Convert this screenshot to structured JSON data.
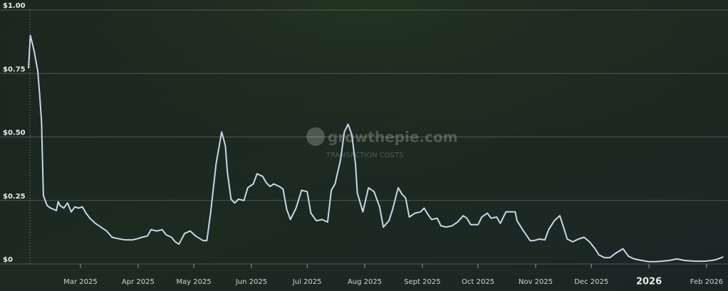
{
  "chart_data": {
    "type": "line",
    "watermark": {
      "brand": "growthepie.com",
      "subtitle": "TRANSACTION COSTS"
    },
    "xlim": [
      0,
      375
    ],
    "xticks": [
      {
        "value": 28,
        "label": "Mar 2025"
      },
      {
        "value": 59,
        "label": "Apr 2025"
      },
      {
        "value": 89,
        "label": "May 2025"
      },
      {
        "value": 120,
        "label": "Jun 2025"
      },
      {
        "value": 150,
        "label": "Jul 2025"
      },
      {
        "value": 181,
        "label": "Aug 2025"
      },
      {
        "value": 212,
        "label": "Sept 2025"
      },
      {
        "value": 242,
        "label": "Oct 2025"
      },
      {
        "value": 273,
        "label": "Nov 2025"
      },
      {
        "value": 303,
        "label": "Dec 2025"
      },
      {
        "value": 334,
        "label": "2026",
        "bold": true
      },
      {
        "value": 365,
        "label": "Feb 2026"
      }
    ],
    "ylim": [
      0,
      1
    ],
    "yticks": [
      {
        "value": 0,
        "label": "$0"
      },
      {
        "value": 0.25,
        "label": "$0.25"
      },
      {
        "value": 0.5,
        "label": "$0.50"
      },
      {
        "value": 0.75,
        "label": "$0.75"
      },
      {
        "value": 1,
        "label": "$1.00"
      }
    ],
    "grid": true,
    "series": [
      {
        "color": "#c9d6e8",
        "x": [
          0,
          1,
          3,
          5,
          6,
          7,
          8,
          10,
          12,
          15,
          16,
          17,
          19,
          21,
          23,
          25,
          27,
          29,
          31,
          33,
          36,
          38,
          42,
          45,
          48,
          52,
          56,
          59,
          61,
          64,
          66,
          69,
          72,
          74,
          77,
          79,
          81,
          84,
          87,
          90,
          94,
          96,
          98,
          101,
          104,
          106,
          107,
          109,
          111,
          113,
          116,
          118,
          121,
          123,
          126,
          128,
          130,
          132,
          135,
          137,
          139,
          141,
          144,
          147,
          150,
          152,
          155,
          158,
          161,
          163,
          165,
          168,
          170,
          172,
          174,
          176,
          177,
          180,
          183,
          186,
          189,
          191,
          194,
          196,
          199,
          201,
          203,
          205,
          208,
          211,
          213,
          215,
          217,
          220,
          222,
          225,
          228,
          231,
          234,
          236,
          238,
          242,
          244,
          247,
          249,
          252,
          254,
          257,
          259,
          262,
          263,
          266,
          270,
          272,
          275,
          278,
          280,
          283,
          286,
          288,
          290,
          293,
          296,
          299,
          302,
          305,
          307,
          310,
          313,
          316,
          320,
          323,
          326,
          330,
          334,
          337,
          341,
          345,
          349,
          353,
          359,
          364,
          368,
          370,
          373,
          374
        ],
        "values": [
          0.77,
          0.9,
          0.84,
          0.76,
          0.67,
          0.56,
          0.27,
          0.23,
          0.22,
          0.21,
          0.245,
          0.23,
          0.22,
          0.24,
          0.205,
          0.225,
          0.22,
          0.225,
          0.2,
          0.18,
          0.16,
          0.15,
          0.13,
          0.105,
          0.1,
          0.095,
          0.095,
          0.1,
          0.105,
          0.11,
          0.135,
          0.13,
          0.135,
          0.115,
          0.105,
          0.087,
          0.078,
          0.12,
          0.13,
          0.11,
          0.092,
          0.092,
          0.2,
          0.395,
          0.52,
          0.465,
          0.365,
          0.255,
          0.24,
          0.255,
          0.25,
          0.3,
          0.315,
          0.355,
          0.345,
          0.32,
          0.305,
          0.315,
          0.305,
          0.295,
          0.215,
          0.175,
          0.22,
          0.29,
          0.285,
          0.2,
          0.17,
          0.175,
          0.165,
          0.29,
          0.315,
          0.41,
          0.52,
          0.55,
          0.51,
          0.395,
          0.28,
          0.205,
          0.3,
          0.285,
          0.225,
          0.145,
          0.17,
          0.215,
          0.3,
          0.275,
          0.26,
          0.185,
          0.2,
          0.205,
          0.22,
          0.195,
          0.175,
          0.18,
          0.15,
          0.145,
          0.15,
          0.165,
          0.19,
          0.18,
          0.155,
          0.155,
          0.185,
          0.2,
          0.18,
          0.185,
          0.16,
          0.205,
          0.205,
          0.205,
          0.17,
          0.135,
          0.092,
          0.092,
          0.098,
          0.095,
          0.135,
          0.17,
          0.19,
          0.145,
          0.098,
          0.087,
          0.098,
          0.105,
          0.087,
          0.06,
          0.036,
          0.025,
          0.025,
          0.042,
          0.06,
          0.03,
          0.02,
          0.014,
          0.009,
          0.009,
          0.011,
          0.014,
          0.02,
          0.014,
          0.011,
          0.011,
          0.014,
          0.017,
          0.025,
          0.028
        ]
      }
    ]
  }
}
